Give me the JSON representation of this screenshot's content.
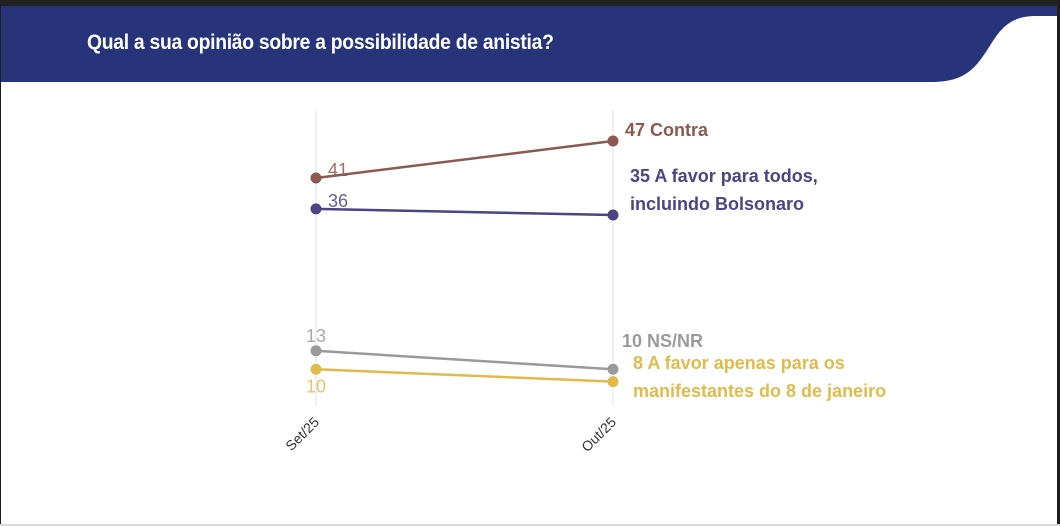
{
  "header": {
    "title": "Qual a sua opinião sobre a possibilidade de anistia?",
    "background_color": "#27347a"
  },
  "chart_data": {
    "type": "line",
    "title": "Qual a sua opinião sobre a possibilidade de anistia?",
    "x": [
      "Set/25",
      "Out/25"
    ],
    "xlabel": "",
    "ylabel": "",
    "grid": "vertical",
    "legend": "direct labels at right end of lines",
    "series": [
      {
        "name": "Contra",
        "values": [
          41,
          47
        ],
        "color": "#8c5850",
        "end_label_lines": [
          "47 Contra"
        ],
        "start_label": "41"
      },
      {
        "name": "A favor para todos, incluindo Bolsonaro",
        "values": [
          36,
          35
        ],
        "color": "#4a4583",
        "end_label_lines": [
          "35 A favor para todos,",
          "incluindo Bolsonaro"
        ],
        "start_label": "36"
      },
      {
        "name": "NS/NR",
        "values": [
          13,
          10
        ],
        "color": "#9a9a9a",
        "end_label_lines": [
          "10 NS/NR"
        ],
        "start_label": "13"
      },
      {
        "name": "A favor apenas para os manifestantes do 8 de janeiro",
        "values": [
          10,
          8
        ],
        "color": "#e0bb4c",
        "end_label_lines": [
          "8 A favor apenas para os",
          "manifestantes do 8 de janeiro"
        ],
        "start_label": "10"
      }
    ]
  }
}
